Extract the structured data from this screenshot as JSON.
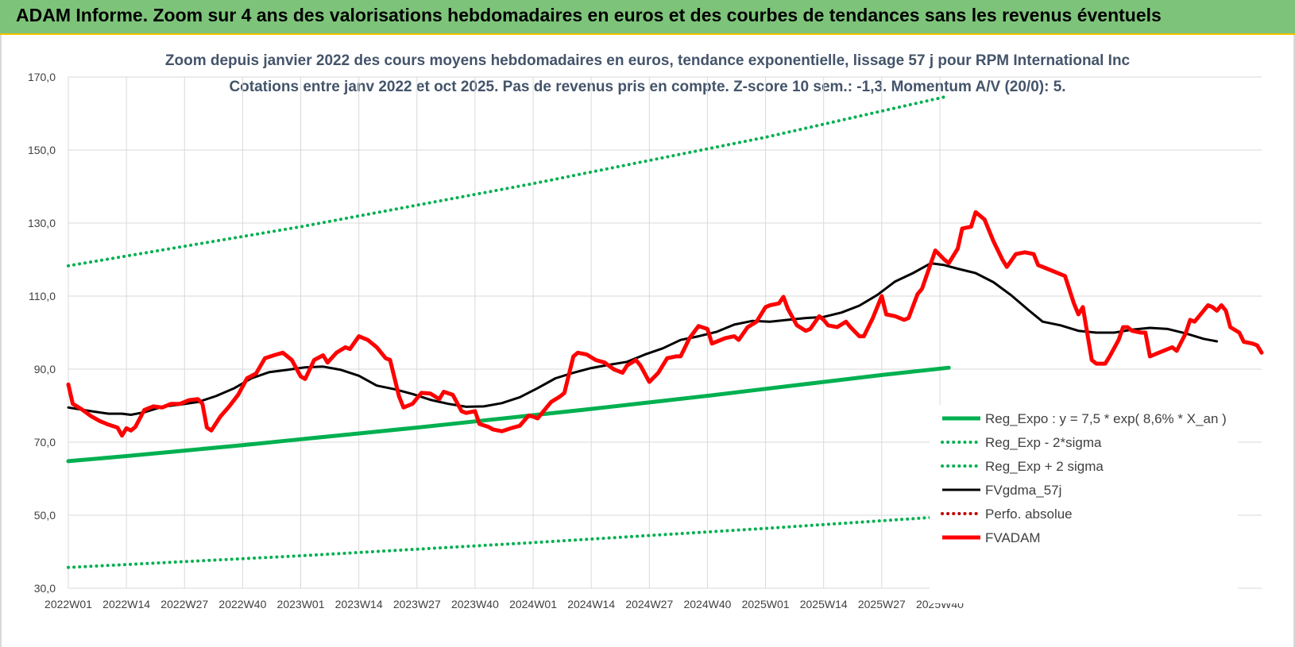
{
  "banner": {
    "title": "ADAM Informe. Zoom sur 4 ans des valorisations hebdomadaires en euros et des courbes de tendances sans les revenus éventuels"
  },
  "chart_data": {
    "type": "line",
    "title": "Zoom depuis janvier 2022 des cours moyens hebdomadaires en euros, tendance exponentielle, lissage 57 j pour RPM International Inc",
    "subtitle": "Cotations entre janv 2022 et oct 2025. Pas de revenus pris en compte. Z-score 10 sem.: -1,3.  Momentum A/V (20/0): 5.",
    "xlabel": "",
    "ylabel": "",
    "ylim": [
      30,
      170
    ],
    "yticks": [
      30,
      50,
      70,
      90,
      110,
      130,
      150,
      170
    ],
    "ytick_labels": [
      "30,0",
      "50,0",
      "70,0",
      "90,0",
      "110,0",
      "130,0",
      "150,0",
      "170,0"
    ],
    "xtick_labels": [
      "2022W01",
      "2022W14",
      "2022W27",
      "2022W40",
      "2023W01",
      "2023W14",
      "2023W27",
      "2023W40",
      "2024W01",
      "2024W14",
      "2024W27",
      "2024W40",
      "2025W01",
      "2025W14",
      "2025W27",
      "2025W40"
    ],
    "x_start_week": 1,
    "weeks_total": 199,
    "grid": true,
    "legend_position": "bottom-right",
    "series": [
      {
        "name": "Reg_Expo : y = 7,5 * exp( 8,6% *  X_an )",
        "color": "#00b050",
        "style": "solid",
        "values": [
          [
            0,
            64.8
          ],
          [
            13,
            66.2
          ],
          [
            26,
            67.7
          ],
          [
            39,
            69.2
          ],
          [
            52,
            70.8
          ],
          [
            65,
            72.4
          ],
          [
            78,
            74.0
          ],
          [
            91,
            75.7
          ],
          [
            104,
            77.4
          ],
          [
            117,
            79.1
          ],
          [
            130,
            80.9
          ],
          [
            143,
            82.7
          ],
          [
            156,
            84.6
          ],
          [
            169,
            86.5
          ],
          [
            182,
            88.4
          ],
          [
            197,
            90.4
          ]
        ]
      },
      {
        "name": "Reg_Exp - 2*sigma",
        "color": "#00b050",
        "style": "dotted",
        "values": [
          [
            0,
            35.7
          ],
          [
            52,
            38.9
          ],
          [
            104,
            42.5
          ],
          [
            156,
            46.4
          ],
          [
            197,
            49.7
          ]
        ]
      },
      {
        "name": "Reg_Exp + 2 sigma",
        "color": "#00b050",
        "style": "dotted",
        "values": [
          [
            0,
            118.3
          ],
          [
            52,
            129.0
          ],
          [
            104,
            140.8
          ],
          [
            156,
            153.5
          ],
          [
            197,
            164.8
          ]
        ]
      },
      {
        "name": "FVgdma_57j",
        "color": "#000000",
        "style": "solid",
        "values": [
          [
            0,
            79.5
          ],
          [
            5,
            78.5
          ],
          [
            9,
            77.8
          ],
          [
            12,
            77.8
          ],
          [
            14,
            77.5
          ],
          [
            17,
            78.2
          ],
          [
            21,
            79.7
          ],
          [
            25,
            80.3
          ],
          [
            29,
            81.0
          ],
          [
            33,
            82.6
          ],
          [
            37,
            84.7
          ],
          [
            41,
            87.5
          ],
          [
            45,
            89.2
          ],
          [
            49,
            89.8
          ],
          [
            53,
            90.5
          ],
          [
            57,
            90.7
          ],
          [
            61,
            89.8
          ],
          [
            65,
            88.2
          ],
          [
            69,
            85.5
          ],
          [
            73,
            84.5
          ],
          [
            77,
            83.2
          ],
          [
            81,
            81.6
          ],
          [
            85,
            80.5
          ],
          [
            89,
            79.7
          ],
          [
            93,
            79.8
          ],
          [
            97,
            80.7
          ],
          [
            101,
            82.3
          ],
          [
            105,
            84.8
          ],
          [
            109,
            87.5
          ],
          [
            113,
            89.0
          ],
          [
            117,
            90.3
          ],
          [
            121,
            91.2
          ],
          [
            125,
            92.0
          ],
          [
            129,
            94.0
          ],
          [
            133,
            95.7
          ],
          [
            137,
            98.0
          ],
          [
            141,
            99.0
          ],
          [
            145,
            100.2
          ],
          [
            149,
            102.2
          ],
          [
            153,
            103.2
          ],
          [
            157,
            103.0
          ],
          [
            161,
            103.5
          ],
          [
            165,
            104.0
          ],
          [
            169,
            104.3
          ],
          [
            173,
            105.5
          ],
          [
            177,
            107.4
          ],
          [
            181,
            110.3
          ],
          [
            185,
            114.0
          ],
          [
            189,
            116.3
          ],
          [
            193,
            119.0
          ],
          [
            196,
            118.5
          ],
          [
            199,
            117.5
          ],
          [
            203,
            116.3
          ],
          [
            207,
            113.8
          ],
          [
            211,
            110.2
          ],
          [
            215,
            106.0
          ],
          [
            218,
            103.0
          ],
          [
            222,
            102.0
          ],
          [
            226,
            100.5
          ],
          [
            230,
            100.0
          ],
          [
            234,
            100.0
          ],
          [
            238,
            100.8
          ],
          [
            242,
            101.3
          ],
          [
            246,
            101.0
          ],
          [
            250,
            99.8
          ],
          [
            254,
            98.3
          ],
          [
            257,
            97.6
          ]
        ]
      },
      {
        "name": "Perfo. absolue",
        "color": "#c00000",
        "style": "dotted",
        "values": []
      },
      {
        "name": "FVADAM",
        "color": "#ff0000",
        "style": "solid",
        "values": [
          [
            0,
            85.8
          ],
          [
            1,
            80.5
          ],
          [
            3,
            79.0
          ],
          [
            5,
            77.2
          ],
          [
            7,
            75.8
          ],
          [
            9,
            74.8
          ],
          [
            11,
            74.0
          ],
          [
            12,
            71.8
          ],
          [
            13,
            73.8
          ],
          [
            14,
            73.2
          ],
          [
            15,
            74.2
          ],
          [
            17,
            78.8
          ],
          [
            19,
            79.8
          ],
          [
            21,
            79.5
          ],
          [
            23,
            80.5
          ],
          [
            25,
            80.5
          ],
          [
            27,
            81.5
          ],
          [
            29,
            81.8
          ],
          [
            30,
            80.5
          ],
          [
            31,
            74.0
          ],
          [
            32,
            73.2
          ],
          [
            34,
            77.0
          ],
          [
            36,
            79.8
          ],
          [
            38,
            83.0
          ],
          [
            40,
            87.5
          ],
          [
            42,
            88.8
          ],
          [
            44,
            93.0
          ],
          [
            46,
            93.8
          ],
          [
            48,
            94.5
          ],
          [
            50,
            92.5
          ],
          [
            52,
            88.0
          ],
          [
            53,
            87.3
          ],
          [
            55,
            92.5
          ],
          [
            57,
            93.8
          ],
          [
            58,
            91.8
          ],
          [
            60,
            94.5
          ],
          [
            62,
            96.0
          ],
          [
            63,
            95.5
          ],
          [
            65,
            99.0
          ],
          [
            67,
            98.0
          ],
          [
            69,
            96.0
          ],
          [
            71,
            93.0
          ],
          [
            72,
            92.5
          ],
          [
            74,
            82.5
          ],
          [
            75,
            79.5
          ],
          [
            77,
            80.5
          ],
          [
            79,
            83.5
          ],
          [
            81,
            83.3
          ],
          [
            83,
            81.8
          ],
          [
            84,
            83.8
          ],
          [
            86,
            83.0
          ],
          [
            88,
            78.5
          ],
          [
            89,
            78.0
          ],
          [
            91,
            78.5
          ],
          [
            92,
            75.0
          ],
          [
            94,
            74.2
          ],
          [
            95,
            73.5
          ],
          [
            97,
            73.0
          ],
          [
            99,
            73.8
          ],
          [
            101,
            74.5
          ],
          [
            103,
            77.3
          ],
          [
            104,
            77.0
          ],
          [
            105,
            76.5
          ],
          [
            106,
            78.0
          ],
          [
            108,
            81.0
          ],
          [
            110,
            82.5
          ],
          [
            111,
            83.5
          ],
          [
            113,
            93.5
          ],
          [
            114,
            94.5
          ],
          [
            116,
            94.0
          ],
          [
            118,
            92.5
          ],
          [
            120,
            91.8
          ],
          [
            122,
            90.0
          ],
          [
            123,
            89.5
          ],
          [
            124,
            89.0
          ],
          [
            125,
            91.0
          ],
          [
            127,
            92.5
          ],
          [
            128,
            91.0
          ],
          [
            130,
            86.5
          ],
          [
            132,
            89.0
          ],
          [
            134,
            93.0
          ],
          [
            136,
            93.5
          ],
          [
            137,
            93.5
          ],
          [
            139,
            98.5
          ],
          [
            141,
            101.8
          ],
          [
            143,
            101.0
          ],
          [
            144,
            97.0
          ],
          [
            145,
            97.5
          ],
          [
            147,
            98.5
          ],
          [
            149,
            99.0
          ],
          [
            150,
            98.0
          ],
          [
            152,
            101.5
          ],
          [
            154,
            103.0
          ],
          [
            156,
            107.0
          ],
          [
            157,
            107.5
          ],
          [
            159,
            108.0
          ],
          [
            160,
            109.8
          ],
          [
            161,
            106.5
          ],
          [
            163,
            102.0
          ],
          [
            165,
            100.5
          ],
          [
            166,
            101.0
          ],
          [
            168,
            104.5
          ],
          [
            169,
            103.5
          ],
          [
            170,
            102.0
          ],
          [
            172,
            101.5
          ],
          [
            174,
            103.0
          ],
          [
            175,
            101.5
          ],
          [
            177,
            99.0
          ],
          [
            178,
            99.0
          ],
          [
            180,
            104.0
          ],
          [
            182,
            110.0
          ],
          [
            183,
            105.0
          ],
          [
            185,
            104.5
          ],
          [
            187,
            103.5
          ],
          [
            188,
            104.0
          ],
          [
            190,
            110.5
          ],
          [
            191,
            112.0
          ],
          [
            193,
            119.0
          ],
          [
            194,
            122.5
          ],
          [
            196,
            120.0
          ],
          [
            197,
            119.0
          ],
          [
            199,
            123.0
          ],
          [
            200,
            128.5
          ],
          [
            202,
            129.0
          ],
          [
            203,
            133.0
          ],
          [
            205,
            131.0
          ],
          [
            207,
            125.0
          ],
          [
            209,
            120.0
          ],
          [
            210,
            118.0
          ],
          [
            212,
            121.5
          ],
          [
            214,
            122.0
          ],
          [
            216,
            121.5
          ],
          [
            217,
            118.5
          ],
          [
            219,
            117.5
          ],
          [
            221,
            116.5
          ],
          [
            223,
            115.5
          ],
          [
            225,
            108.0
          ],
          [
            226,
            105.0
          ],
          [
            227,
            107.0
          ],
          [
            229,
            92.5
          ],
          [
            230,
            91.5
          ],
          [
            232,
            91.5
          ],
          [
            233,
            93.5
          ],
          [
            235,
            98.0
          ],
          [
            236,
            101.5
          ],
          [
            237,
            101.5
          ],
          [
            238,
            100.5
          ],
          [
            240,
            100.0
          ],
          [
            241,
            100.0
          ],
          [
            242,
            93.5
          ],
          [
            244,
            94.5
          ],
          [
            246,
            95.5
          ],
          [
            247,
            96.0
          ],
          [
            248,
            95.0
          ],
          [
            250,
            99.8
          ],
          [
            251,
            103.5
          ],
          [
            252,
            103.0
          ],
          [
            254,
            106.0
          ],
          [
            255,
            107.5
          ],
          [
            256,
            107.0
          ],
          [
            257,
            106.0
          ],
          [
            258,
            107.5
          ],
          [
            259,
            106.0
          ],
          [
            260,
            101.5
          ],
          [
            262,
            100.0
          ],
          [
            263,
            97.5
          ],
          [
            265,
            97.0
          ],
          [
            266,
            96.5
          ],
          [
            267,
            94.5
          ]
        ]
      }
    ]
  }
}
